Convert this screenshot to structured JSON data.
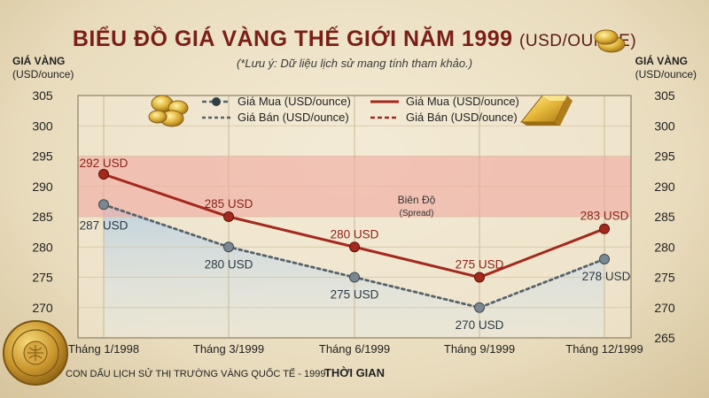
{
  "title": {
    "main": "BIỂU ĐỒ GIÁ VÀNG THẾ GIỚI NĂM 1999",
    "unit": "(USD/OUNCE)",
    "note": "(*Lưu ý: Dữ liệu lịch sử mang tính tham khảo.)"
  },
  "axes": {
    "y_left_title": "GIÁ VÀNG",
    "y_left_unit": "(USD/ounce)",
    "y_right_title": "GIÁ VÀNG",
    "y_right_unit": "(USD/ounce)",
    "x_title": "THỜI GIAN"
  },
  "footer": {
    "stamp_caption": "CON DẤU LỊCH SỬ THỊ TRƯỜNG VÀNG QUỐC TẾ - 1999",
    "seal_text": "INTERNATIONAL GOLD MARKET · HISTORICAL SEAL"
  },
  "spread": {
    "label": "Biên Độ",
    "sublabel": "(Spread)"
  },
  "colors": {
    "buy": "#a3291d",
    "sell": "#56626c",
    "spread_fill": "#f0a8a0",
    "lower_fill": "#cfdde6",
    "title": "#7a1f17"
  },
  "chart_data": {
    "type": "line",
    "categories": [
      "Tháng 1/1998",
      "Tháng 3/1999",
      "Tháng 6/1999",
      "Tháng 9/1999",
      "Tháng 12/1999"
    ],
    "series": [
      {
        "name": "Giá Mua (USD/ounce)",
        "values": [
          292,
          285,
          280,
          275,
          283
        ],
        "labels": [
          "292 USD",
          "285 USD",
          "280 USD",
          "275 USD",
          "283 USD"
        ]
      },
      {
        "name": "Giá Bán (USD/ounce)",
        "values": [
          287,
          280,
          275,
          270,
          278
        ],
        "labels": [
          "287 USD",
          "280 USD",
          "275 USD",
          "270 USD",
          "278 USD"
        ]
      }
    ],
    "legend": [
      "Giá Mua (USD/ounce)",
      "Giá Bán (USD/ounce)",
      "Giá Mua (USD/ounce)",
      "Giá Bán (USD/ounce)"
    ],
    "y_ticks_left": [
      "305",
      "300",
      "295",
      "290",
      "285",
      "280",
      "275",
      "270"
    ],
    "y_ticks_right": [
      "305",
      "300",
      "295",
      "290",
      "285",
      "280",
      "275",
      "270",
      "265"
    ],
    "y_ticks_left_values": [
      305,
      300,
      295,
      290,
      285,
      280,
      275,
      270
    ],
    "y_ticks_right_values": [
      305,
      300,
      295,
      290,
      285,
      280,
      275,
      270,
      265
    ],
    "ylim": [
      265,
      305
    ],
    "spread_band": [
      285,
      295
    ],
    "grid": true,
    "legend_position": "top"
  }
}
